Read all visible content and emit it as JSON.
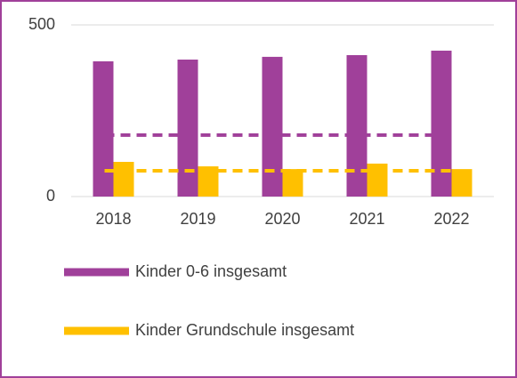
{
  "chart_data": {
    "type": "bar",
    "categories": [
      "2018",
      "2019",
      "2020",
      "2021",
      "2022"
    ],
    "series": [
      {
        "name": "Kinder 0-6 insgesamt",
        "color": "#a0409a",
        "values": [
          394,
          399,
          407,
          412,
          425
        ]
      },
      {
        "name": "Kinder Grundschule insgesamt",
        "color": "#ffc000",
        "values": [
          101,
          88,
          80,
          96,
          80
        ]
      }
    ],
    "reference_lines": [
      {
        "color": "#a0409a",
        "value": 179
      },
      {
        "color": "#ffc000",
        "value": 75
      }
    ],
    "ylim": [
      0,
      500
    ],
    "yticks": [
      0,
      500
    ],
    "grid": true,
    "legend": "bottom"
  }
}
